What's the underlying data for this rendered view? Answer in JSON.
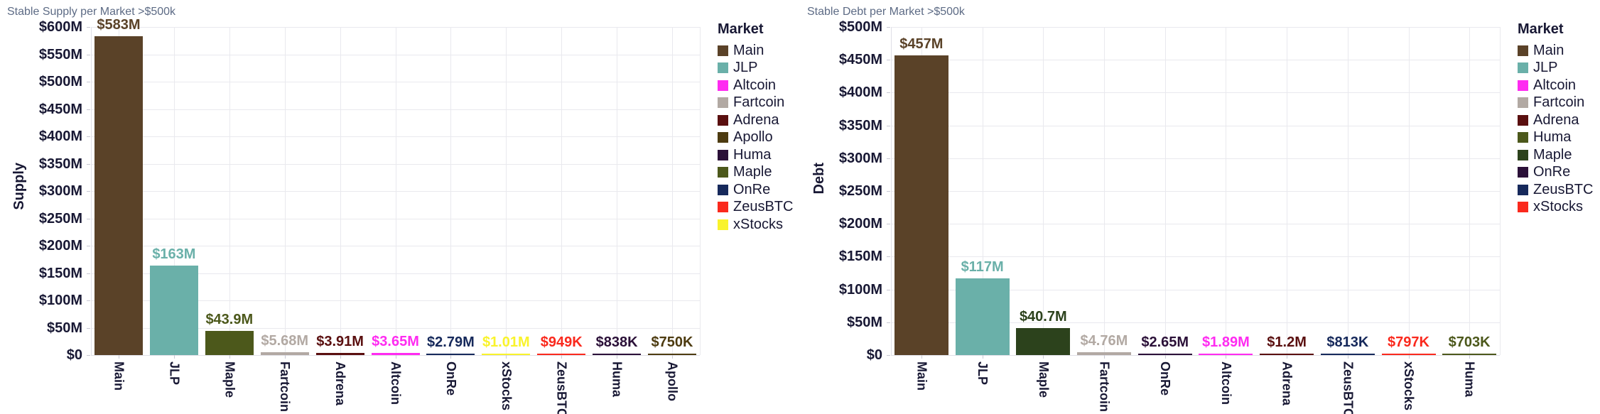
{
  "ui": {
    "background": "#ffffff",
    "title_color": "#5d6b85",
    "axis_text_color": "#181834",
    "gridline_color": "#e9e9ee",
    "axis_line_color": "#dfdfe6"
  },
  "chart_data": [
    {
      "type": "bar",
      "title": "Stable Supply per Market >$500k",
      "ylabel": "Supply",
      "xlabel": "",
      "units": "USD millions",
      "ylim": [
        0,
        600
      ],
      "grid": true,
      "legend_position": "right",
      "legend_title": "Market",
      "y_tick_values": [
        0,
        50,
        100,
        150,
        200,
        250,
        300,
        350,
        400,
        450,
        500,
        550,
        600
      ],
      "y_tick_labels": [
        "$0",
        "$50M",
        "$100M",
        "$150M",
        "$200M",
        "$250M",
        "$300M",
        "$350M",
        "$400M",
        "$450M",
        "$500M",
        "$550M",
        "$600M"
      ],
      "categories": [
        "Main",
        "JLP",
        "Maple",
        "Fartcoin",
        "Adrena",
        "Altcoin",
        "OnRe",
        "xStocks",
        "ZeusBTC",
        "Huma",
        "Apollo"
      ],
      "values": [
        583,
        163,
        43.9,
        5.68,
        3.91,
        3.65,
        2.79,
        1.01,
        0.949,
        0.838,
        0.75
      ],
      "bar_labels": [
        "$583M",
        "$163M",
        "$43.9M",
        "$5.68M",
        "$3.91M",
        "$3.65M",
        "$2.79M",
        "$1.01M",
        "$949K",
        "$838K",
        "$750K"
      ],
      "bar_colors": [
        "#5a4228",
        "#6ab0a9",
        "#4c581b",
        "#b2a9a3",
        "#5a0f0f",
        "#ff2bf1",
        "#16295b",
        "#f9f32b",
        "#fa291d",
        "#2b1038",
        "#4d3b10"
      ],
      "legend_items": [
        {
          "label": "Main",
          "color": "#5a4228"
        },
        {
          "label": "JLP",
          "color": "#6ab0a9"
        },
        {
          "label": "Altcoin",
          "color": "#ff2bf1"
        },
        {
          "label": "Fartcoin",
          "color": "#b2a9a3"
        },
        {
          "label": "Adrena",
          "color": "#5a0f0f"
        },
        {
          "label": "Apollo",
          "color": "#4d3b10"
        },
        {
          "label": "Huma",
          "color": "#2b1038"
        },
        {
          "label": "Maple",
          "color": "#4c581b"
        },
        {
          "label": "OnRe",
          "color": "#16295b"
        },
        {
          "label": "ZeusBTC",
          "color": "#fa291d"
        },
        {
          "label": "xStocks",
          "color": "#f9f32b"
        }
      ]
    },
    {
      "type": "bar",
      "title": "Stable Debt per Market >$500k",
      "ylabel": "Debt",
      "xlabel": "",
      "units": "USD millions",
      "ylim": [
        0,
        500
      ],
      "grid": true,
      "legend_position": "right",
      "legend_title": "Market",
      "y_tick_values": [
        0,
        50,
        100,
        150,
        200,
        250,
        300,
        350,
        400,
        450,
        500
      ],
      "y_tick_labels": [
        "$0",
        "$50M",
        "$100M",
        "$150M",
        "$200M",
        "$250M",
        "$300M",
        "$350M",
        "$400M",
        "$450M",
        "$500M"
      ],
      "categories": [
        "Main",
        "JLP",
        "Maple",
        "Fartcoin",
        "OnRe",
        "Altcoin",
        "Adrena",
        "ZeusBTC",
        "xStocks",
        "Huma"
      ],
      "values": [
        457,
        117,
        40.7,
        4.76,
        2.65,
        1.89,
        1.2,
        0.813,
        0.797,
        0.703
      ],
      "bar_labels": [
        "$457M",
        "$117M",
        "$40.7M",
        "$4.76M",
        "$2.65M",
        "$1.89M",
        "$1.2M",
        "$813K",
        "$797K",
        "$703K"
      ],
      "bar_colors": [
        "#5a4228",
        "#6ab0a9",
        "#2c421c",
        "#b2a9a3",
        "#2b1038",
        "#ff2bf1",
        "#5a0f0f",
        "#16295b",
        "#fa291d",
        "#4c581b"
      ],
      "legend_items": [
        {
          "label": "Main",
          "color": "#5a4228"
        },
        {
          "label": "JLP",
          "color": "#6ab0a9"
        },
        {
          "label": "Altcoin",
          "color": "#ff2bf1"
        },
        {
          "label": "Fartcoin",
          "color": "#b2a9a3"
        },
        {
          "label": "Adrena",
          "color": "#5a0f0f"
        },
        {
          "label": "Huma",
          "color": "#4c581b"
        },
        {
          "label": "Maple",
          "color": "#2c421c"
        },
        {
          "label": "OnRe",
          "color": "#2b1038"
        },
        {
          "label": "ZeusBTC",
          "color": "#16295b"
        },
        {
          "label": "xStocks",
          "color": "#fa291d"
        }
      ]
    }
  ]
}
